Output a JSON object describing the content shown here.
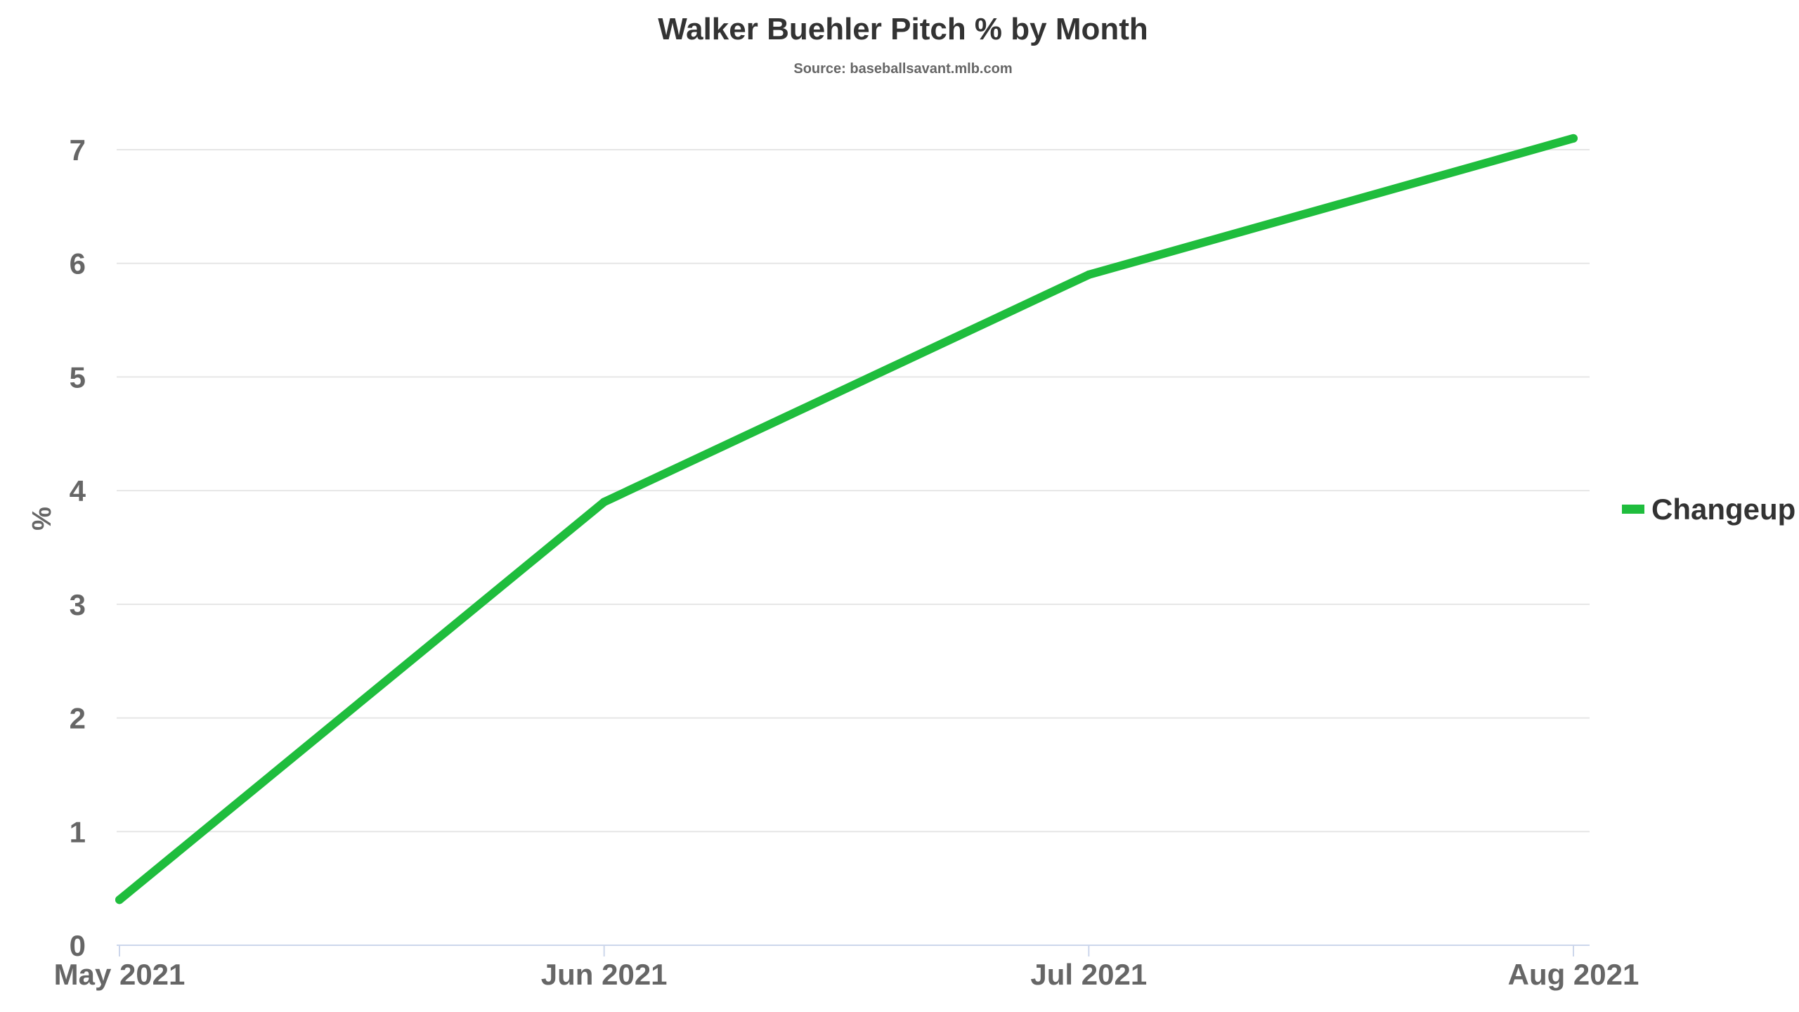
{
  "chart_data": {
    "type": "line",
    "title": "Walker Buehler Pitch % by Month",
    "subtitle": "Source: baseballsavant.mlb.com",
    "xlabel": "",
    "ylabel": "%",
    "categories": [
      "May 2021",
      "Jun 2021",
      "Jul 2021",
      "Aug 2021"
    ],
    "series": [
      {
        "name": "Changeup",
        "color": "#1fbd3d",
        "values": [
          0.4,
          3.9,
          5.9,
          7.1
        ]
      }
    ],
    "ylim": [
      0,
      7
    ],
    "yticks": [
      0,
      1,
      2,
      3,
      4,
      5,
      6,
      7
    ],
    "grid": true,
    "legend_position": "right"
  }
}
